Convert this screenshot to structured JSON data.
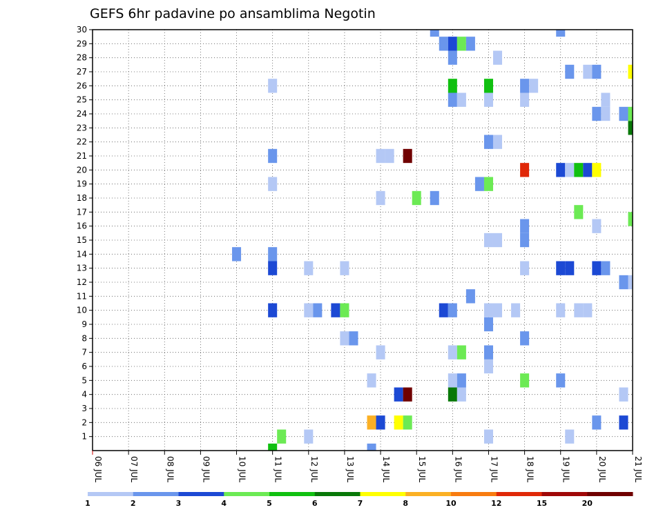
{
  "chart_data": {
    "type": "heatmap",
    "title": "GEFS 6hr padavine po ansamblima Negotin",
    "y_ticks": [
      "1",
      "2",
      "3",
      "4",
      "5",
      "6",
      "7",
      "8",
      "9",
      "10",
      "11",
      "12",
      "13",
      "14",
      "15",
      "16",
      "17",
      "18",
      "19",
      "20",
      "21",
      "22",
      "23",
      "24",
      "25",
      "26",
      "27",
      "28",
      "29",
      "30"
    ],
    "x_ticks": [
      "06 JUL",
      "07 JUL",
      "08 JUL",
      "09 JUL",
      "10 JUL",
      "11 JUL",
      "12 JUL",
      "13 JUL",
      "14 JUL",
      "15 JUL",
      "16 JUL",
      "17 JUL",
      "18 JUL",
      "19 JUL",
      "20 JUL",
      "21 JUL"
    ],
    "x_range": [
      6,
      21
    ],
    "y_range": [
      0,
      30
    ],
    "grid": true,
    "colorbar": {
      "labels": [
        "1",
        "2",
        "3",
        "4",
        "5",
        "6",
        "7",
        "8",
        "10",
        "12",
        "15",
        "20"
      ],
      "colors": [
        "#b4c8f5",
        "#6a96ec",
        "#1c49d4",
        "#6cea54",
        "#10c010",
        "#087808",
        "#ffff00",
        "#fbb024",
        "#f87c10",
        "#e02808",
        "#a00808",
        "#700000"
      ]
    },
    "cells": [
      {
        "x": 11,
        "y": 0,
        "c": 5
      },
      {
        "x": 11.25,
        "y": 1,
        "c": 4
      },
      {
        "x": 12,
        "y": 1,
        "c": 1
      },
      {
        "x": 17,
        "y": 1,
        "c": 1
      },
      {
        "x": 19.25,
        "y": 1,
        "c": 1
      },
      {
        "x": 13.75,
        "y": 0,
        "c": 2
      },
      {
        "x": 13.75,
        "y": 2,
        "c": 8
      },
      {
        "x": 14,
        "y": 2,
        "c": 3
      },
      {
        "x": 14.5,
        "y": 2,
        "c": 7
      },
      {
        "x": 14.75,
        "y": 2,
        "c": 4
      },
      {
        "x": 20,
        "y": 2,
        "c": 2
      },
      {
        "x": 20.75,
        "y": 2,
        "c": 3
      },
      {
        "x": 14.5,
        "y": 4,
        "c": 3
      },
      {
        "x": 14.75,
        "y": 4,
        "c": 20
      },
      {
        "x": 16,
        "y": 4,
        "c": 6
      },
      {
        "x": 16.25,
        "y": 4,
        "c": 1
      },
      {
        "x": 20.75,
        "y": 4,
        "c": 1
      },
      {
        "x": 13.75,
        "y": 5,
        "c": 1
      },
      {
        "x": 16,
        "y": 5,
        "c": 1
      },
      {
        "x": 16.25,
        "y": 5,
        "c": 2
      },
      {
        "x": 18,
        "y": 5,
        "c": 4
      },
      {
        "x": 19,
        "y": 5,
        "c": 2
      },
      {
        "x": 17,
        "y": 6,
        "c": 1
      },
      {
        "x": 14,
        "y": 7,
        "c": 1
      },
      {
        "x": 16,
        "y": 7,
        "c": 1
      },
      {
        "x": 16.25,
        "y": 7,
        "c": 4
      },
      {
        "x": 17,
        "y": 7,
        "c": 2
      },
      {
        "x": 13,
        "y": 8,
        "c": 1
      },
      {
        "x": 13.25,
        "y": 8,
        "c": 2
      },
      {
        "x": 18,
        "y": 8,
        "c": 2
      },
      {
        "x": 17,
        "y": 9,
        "c": 2
      },
      {
        "x": 11,
        "y": 10,
        "c": 3
      },
      {
        "x": 12,
        "y": 10,
        "c": 1
      },
      {
        "x": 12.25,
        "y": 10,
        "c": 2
      },
      {
        "x": 12.75,
        "y": 10,
        "c": 3
      },
      {
        "x": 13,
        "y": 10,
        "c": 4
      },
      {
        "x": 15.75,
        "y": 10,
        "c": 3
      },
      {
        "x": 16,
        "y": 10,
        "c": 2
      },
      {
        "x": 17,
        "y": 10,
        "c": 1
      },
      {
        "x": 17.25,
        "y": 10,
        "c": 1
      },
      {
        "x": 17.75,
        "y": 10,
        "c": 1
      },
      {
        "x": 19,
        "y": 10,
        "c": 1
      },
      {
        "x": 19.5,
        "y": 10,
        "c": 1
      },
      {
        "x": 19.75,
        "y": 10,
        "c": 1
      },
      {
        "x": 16.5,
        "y": 11,
        "c": 2
      },
      {
        "x": 20.75,
        "y": 12,
        "c": 2
      },
      {
        "x": 21,
        "y": 12,
        "c": 1
      },
      {
        "x": 11,
        "y": 13,
        "c": 3
      },
      {
        "x": 12,
        "y": 13,
        "c": 1
      },
      {
        "x": 13,
        "y": 13,
        "c": 1
      },
      {
        "x": 18,
        "y": 13,
        "c": 1
      },
      {
        "x": 19,
        "y": 13,
        "c": 3
      },
      {
        "x": 19.25,
        "y": 13,
        "c": 3
      },
      {
        "x": 20,
        "y": 13,
        "c": 3
      },
      {
        "x": 20.25,
        "y": 13,
        "c": 2
      },
      {
        "x": 10,
        "y": 14,
        "c": 2
      },
      {
        "x": 11,
        "y": 14,
        "c": 2
      },
      {
        "x": 17,
        "y": 15,
        "c": 1
      },
      {
        "x": 17.25,
        "y": 15,
        "c": 1
      },
      {
        "x": 18,
        "y": 15,
        "c": 2
      },
      {
        "x": 18,
        "y": 16,
        "c": 2
      },
      {
        "x": 20,
        "y": 16,
        "c": 1
      },
      {
        "x": 19.5,
        "y": 17,
        "c": 4
      },
      {
        "x": 21,
        "y": 16.5,
        "c": 4
      },
      {
        "x": 14,
        "y": 18,
        "c": 1
      },
      {
        "x": 15,
        "y": 18,
        "c": 4
      },
      {
        "x": 15.5,
        "y": 18,
        "c": 2
      },
      {
        "x": 11,
        "y": 19,
        "c": 1
      },
      {
        "x": 16.75,
        "y": 19,
        "c": 2
      },
      {
        "x": 17,
        "y": 19,
        "c": 4
      },
      {
        "x": 18,
        "y": 20,
        "c": 12
      },
      {
        "x": 19,
        "y": 20,
        "c": 3
      },
      {
        "x": 19.25,
        "y": 20,
        "c": 1
      },
      {
        "x": 19.5,
        "y": 20,
        "c": 5
      },
      {
        "x": 19.75,
        "y": 20,
        "c": 3
      },
      {
        "x": 20,
        "y": 20,
        "c": 7
      },
      {
        "x": 11,
        "y": 21,
        "c": 2
      },
      {
        "x": 14,
        "y": 21,
        "c": 1
      },
      {
        "x": 14.25,
        "y": 21,
        "c": 1
      },
      {
        "x": 14.75,
        "y": 21,
        "c": 20
      },
      {
        "x": 17,
        "y": 22,
        "c": 2
      },
      {
        "x": 17.25,
        "y": 22,
        "c": 1
      },
      {
        "x": 21,
        "y": 23,
        "c": 6
      },
      {
        "x": 20,
        "y": 24,
        "c": 2
      },
      {
        "x": 20.25,
        "y": 24,
        "c": 1
      },
      {
        "x": 20.75,
        "y": 24,
        "c": 2
      },
      {
        "x": 21,
        "y": 24,
        "c": 4
      },
      {
        "x": 16,
        "y": 25,
        "c": 2
      },
      {
        "x": 16.25,
        "y": 25,
        "c": 1
      },
      {
        "x": 17,
        "y": 25,
        "c": 1
      },
      {
        "x": 18,
        "y": 25,
        "c": 1
      },
      {
        "x": 20.25,
        "y": 25,
        "c": 1
      },
      {
        "x": 11,
        "y": 26,
        "c": 1
      },
      {
        "x": 16,
        "y": 26,
        "c": 5
      },
      {
        "x": 17,
        "y": 26,
        "c": 5
      },
      {
        "x": 18,
        "y": 26,
        "c": 2
      },
      {
        "x": 18.25,
        "y": 26,
        "c": 1
      },
      {
        "x": 19.25,
        "y": 27,
        "c": 2
      },
      {
        "x": 19.75,
        "y": 27,
        "c": 1
      },
      {
        "x": 20,
        "y": 27,
        "c": 2
      },
      {
        "x": 21,
        "y": 27,
        "c": 7
      },
      {
        "x": 16,
        "y": 28,
        "c": 2
      },
      {
        "x": 17.25,
        "y": 28,
        "c": 1
      },
      {
        "x": 15.75,
        "y": 29,
        "c": 2
      },
      {
        "x": 16,
        "y": 29,
        "c": 3
      },
      {
        "x": 16.25,
        "y": 29,
        "c": 4
      },
      {
        "x": 16.5,
        "y": 29,
        "c": 2
      },
      {
        "x": 15.5,
        "y": 30,
        "c": 2
      },
      {
        "x": 19,
        "y": 30,
        "c": 2
      }
    ]
  }
}
